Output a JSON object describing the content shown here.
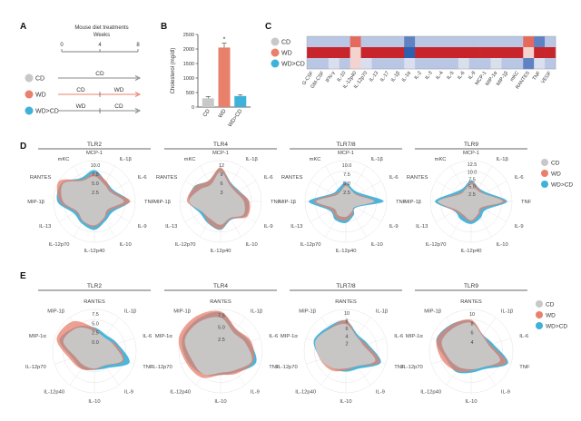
{
  "panels": {
    "a": {
      "letter": "A",
      "title": "Mouse diet treatments",
      "unit": "Weeks",
      "ticks": [
        "0",
        "4",
        "8"
      ],
      "rows": [
        {
          "group": "CD",
          "color": "#c8c8c8",
          "segments": [
            "CD"
          ]
        },
        {
          "group": "WD",
          "color": "#e8806c",
          "segments": [
            "CD",
            "WD"
          ]
        },
        {
          "group": "WD>CD",
          "color": "#3fb2d9",
          "segments": [
            "WD",
            "CD"
          ]
        }
      ]
    },
    "b": {
      "letter": "B",
      "ylabel": "Cholesterol (mg/dl)",
      "star": "*"
    },
    "c": {
      "letter": "C",
      "groups": [
        {
          "label": "CD",
          "color": "#c8c8c8"
        },
        {
          "label": "WD",
          "color": "#e8806c"
        },
        {
          "label": "WD>CD",
          "color": "#3fb2d9"
        }
      ],
      "cytokines": [
        "G-CSF",
        "GM-CSF",
        "IFN-γ",
        "IL-10",
        "IL-12p40",
        "IL-12p70",
        "IL-13",
        "IL-17",
        "IL-1β",
        "IL-1α",
        "IL-2",
        "IL-3",
        "IL-4",
        "IL-5",
        "IL-6",
        "IL-9",
        "MCP-1",
        "MIP-1α",
        "MIP-1β",
        "mKC",
        "RANTES",
        "TNF",
        "VEGF"
      ]
    },
    "d": {
      "letter": "D",
      "receptors": [
        "TLR2",
        "TLR4",
        "TLR7/8",
        "TLR9"
      ],
      "axes": [
        "MCP-1",
        "IL-1β",
        "IL-6",
        "TNF",
        "IL-9",
        "IL-10",
        "IL-12p40",
        "IL-12p70",
        "IL-13",
        "MIP-1β",
        "RANTES",
        "mKC"
      ],
      "scales": [
        [
          "2.5",
          "5.0",
          "7.5",
          "10.0"
        ],
        [
          "3",
          "6",
          "9",
          "12"
        ],
        [
          "2.5",
          "5.0",
          "7.5",
          "10.0"
        ],
        [
          "2.5",
          "5.0",
          "7.5",
          "10.0",
          "12.5"
        ]
      ],
      "legend": [
        "CD",
        "WD",
        "WD>CD"
      ]
    },
    "e": {
      "letter": "E",
      "receptors": [
        "TLR2",
        "TLR4",
        "TLR7/8",
        "TLR9"
      ],
      "axes": [
        "RANTES",
        "IL-1β",
        "IL-6",
        "TNF",
        "IL-9",
        "IL-10",
        "IL-12p40",
        "IL-12p70",
        "MIP-1α",
        "MIP-1β"
      ],
      "scales": [
        [
          "0.0",
          "2.5",
          "5.0",
          "7.5"
        ],
        [
          "2.5",
          "5.0",
          "7.5"
        ],
        [
          "2",
          "4",
          "6",
          "8",
          "10"
        ],
        [
          "4",
          "6",
          "8",
          "10"
        ]
      ],
      "legend": [
        "CD",
        "WD",
        "WD>CD"
      ]
    }
  },
  "colors": {
    "cd": "#c8c8c8",
    "wd": "#e8806c",
    "wdcd": "#3fb2d9",
    "heat_high": "#c8242b",
    "heat_low": "#b9c7e4",
    "heat_mid": "#e4e8f2",
    "heat_blue": "#2f5fae"
  },
  "chart_data": [
    {
      "type": "bar",
      "panel": "B",
      "ylabel": "Cholesterol (mg/dl)",
      "categories": [
        "CD",
        "WD",
        "WD>CD"
      ],
      "values": [
        300,
        2050,
        380
      ],
      "errors": [
        60,
        150,
        40
      ],
      "ylim": [
        0,
        2500
      ],
      "yticks": [
        0,
        500,
        1000,
        1500,
        2000,
        2500
      ]
    },
    {
      "type": "heatmap",
      "panel": "C",
      "rows": [
        "CD",
        "WD",
        "WD>CD"
      ],
      "columns": [
        "G-CSF",
        "GM-CSF",
        "IFN-γ",
        "IL-10",
        "IL-12p40",
        "IL-12p70",
        "IL-13",
        "IL-17",
        "IL-1β",
        "IL-1α",
        "IL-2",
        "IL-3",
        "IL-4",
        "IL-5",
        "IL-6",
        "IL-9",
        "MCP-1",
        "MIP-1α",
        "MIP-1β",
        "mKC",
        "RANTES",
        "TNF",
        "VEGF"
      ],
      "values": [
        [
          0.2,
          0.25,
          0.15,
          0.2,
          0.85,
          0.25,
          0.2,
          0.2,
          0.15,
          0.1,
          0.2,
          0.2,
          0.15,
          0.2,
          0.25,
          0.2,
          0.2,
          0.25,
          0.2,
          0.2,
          0.9,
          0.1,
          0.2
        ],
        [
          1,
          1,
          1,
          1,
          0.7,
          1,
          1,
          1,
          1,
          0.05,
          1,
          1,
          1,
          1,
          1,
          1,
          1,
          1,
          1,
          1,
          0.5,
          1,
          1
        ],
        [
          0.25,
          0.2,
          0.3,
          0.25,
          0.55,
          0.3,
          0.25,
          0.2,
          0.15,
          0.35,
          0.2,
          0.2,
          0.25,
          0.15,
          0.3,
          0.2,
          0.25,
          0.3,
          0.25,
          0.2,
          0.1,
          0.35,
          0.2
        ]
      ]
    }
  ]
}
